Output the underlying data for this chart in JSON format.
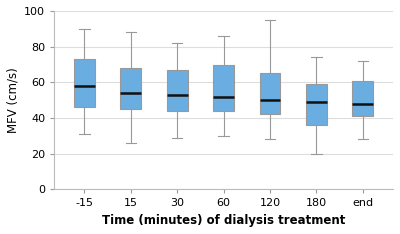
{
  "categories": [
    "-15",
    "15",
    "30",
    "60",
    "120",
    "180",
    "end"
  ],
  "boxes": [
    {
      "whislo": 31,
      "q1": 46,
      "med": 58,
      "q3": 73,
      "whishi": 90
    },
    {
      "whislo": 26,
      "q1": 45,
      "med": 54,
      "q3": 68,
      "whishi": 88
    },
    {
      "whislo": 29,
      "q1": 44,
      "med": 53,
      "q3": 67,
      "whishi": 82
    },
    {
      "whislo": 30,
      "q1": 44,
      "med": 52,
      "q3": 70,
      "whishi": 86
    },
    {
      "whislo": 28,
      "q1": 42,
      "med": 50,
      "q3": 65,
      "whishi": 95
    },
    {
      "whislo": 20,
      "q1": 36,
      "med": 49,
      "q3": 59,
      "whishi": 74
    },
    {
      "whislo": 28,
      "q1": 41,
      "med": 48,
      "q3": 61,
      "whishi": 72
    }
  ],
  "box_facecolor": "#6aade0",
  "box_edgecolor": "#999999",
  "median_color": "#111111",
  "whisker_color": "#999999",
  "cap_color": "#999999",
  "ylabel": "MFV (cm/s)",
  "xlabel": "Time (minutes) of dialysis treatment",
  "ylim": [
    0,
    100
  ],
  "yticks": [
    0,
    20,
    40,
    60,
    80,
    100
  ],
  "background_color": "#ffffff",
  "grid_color": "#dddddd",
  "label_fontsize": 8.5,
  "tick_fontsize": 8,
  "xlabel_bold": true
}
